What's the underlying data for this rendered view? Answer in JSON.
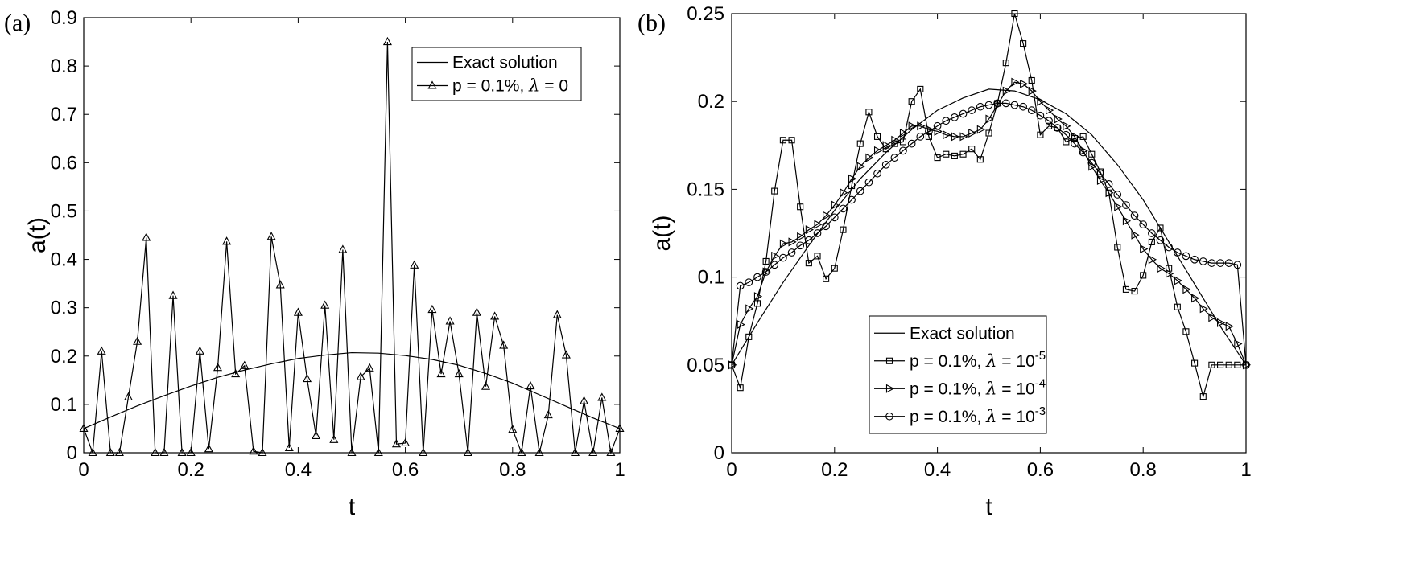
{
  "chart_data": [
    {
      "type": "line",
      "panel_label": "(a)",
      "xlabel": "t",
      "ylabel": "a(t)",
      "xlim": [
        0,
        1
      ],
      "ylim": [
        0,
        0.9
      ],
      "xticks": [
        0,
        0.2,
        0.4,
        0.6,
        0.8,
        1
      ],
      "xtick_labels": [
        "0",
        "0.2",
        "0.4",
        "0.6",
        "0.8",
        "1"
      ],
      "yticks": [
        0,
        0.1,
        0.2,
        0.3,
        0.4,
        0.5,
        0.6,
        0.7,
        0.8,
        0.9
      ],
      "ytick_labels": [
        "0",
        "0.1",
        "0.2",
        "0.3",
        "0.4",
        "0.5",
        "0.6",
        "0.7",
        "0.8",
        "0.9"
      ],
      "legend_position": "top-right",
      "series": [
        {
          "name": "Exact solution",
          "marker": "none",
          "x": [
            0,
            0.05,
            0.1,
            0.15,
            0.2,
            0.25,
            0.3,
            0.35,
            0.4,
            0.45,
            0.5,
            0.55,
            0.6,
            0.65,
            0.7,
            0.75,
            0.8,
            0.85,
            0.9,
            0.95,
            1
          ],
          "y": [
            0.05,
            0.074,
            0.097,
            0.118,
            0.138,
            0.156,
            0.171,
            0.184,
            0.195,
            0.202,
            0.207,
            0.206,
            0.201,
            0.193,
            0.181,
            0.164,
            0.144,
            0.12,
            0.096,
            0.072,
            0.05
          ]
        },
        {
          "name": "p = 0.1%, λ = 0",
          "label_pre": "p = 0.1%, ",
          "label_sym": "λ",
          "label_post": " = 0",
          "marker": "triangle-up",
          "x": [
            0,
            0.0167,
            0.0333,
            0.05,
            0.0667,
            0.0833,
            0.1,
            0.1167,
            0.1333,
            0.15,
            0.1667,
            0.1833,
            0.2,
            0.2167,
            0.2333,
            0.25,
            0.2667,
            0.2833,
            0.3,
            0.3167,
            0.3333,
            0.35,
            0.3667,
            0.3833,
            0.4,
            0.4167,
            0.4333,
            0.45,
            0.4667,
            0.4833,
            0.5,
            0.5167,
            0.5333,
            0.55,
            0.5667,
            0.5833,
            0.6,
            0.6167,
            0.6333,
            0.65,
            0.6667,
            0.6833,
            0.7,
            0.7167,
            0.7333,
            0.75,
            0.7667,
            0.7833,
            0.8,
            0.8167,
            0.8333,
            0.85,
            0.8667,
            0.8833,
            0.9,
            0.9167,
            0.9333,
            0.95,
            0.9667,
            0.9833,
            1
          ],
          "y": [
            0.05,
            0,
            0.21,
            0,
            0,
            0.115,
            0.23,
            0.445,
            0,
            0,
            0.325,
            0,
            0,
            0.21,
            0.008,
            0.176,
            0.437,
            0.163,
            0.18,
            0.003,
            0,
            0.447,
            0.347,
            0.01,
            0.29,
            0.153,
            0.035,
            0.305,
            0.027,
            0.42,
            0,
            0.157,
            0.175,
            0,
            0.85,
            0.018,
            0.02,
            0.388,
            0,
            0.296,
            0.163,
            0.272,
            0.163,
            0,
            0.29,
            0.137,
            0.282,
            0.222,
            0.048,
            0,
            0.138,
            0,
            0.078,
            0.285,
            0.202,
            0,
            0.107,
            0,
            0.114,
            0,
            0.05
          ]
        }
      ]
    },
    {
      "type": "line",
      "panel_label": "(b)",
      "xlabel": "t",
      "ylabel": "a(t)",
      "xlim": [
        0,
        1
      ],
      "ylim": [
        0,
        0.25
      ],
      "xticks": [
        0,
        0.2,
        0.4,
        0.6,
        0.8,
        1
      ],
      "xtick_labels": [
        "0",
        "0.2",
        "0.4",
        "0.6",
        "0.8",
        "1"
      ],
      "yticks": [
        0,
        0.05,
        0.1,
        0.15,
        0.2,
        0.25
      ],
      "ytick_labels": [
        "0",
        "0.05",
        "0.1",
        "0.15",
        "0.2",
        "0.25"
      ],
      "legend_position": "bottom-center",
      "series": [
        {
          "name": "Exact solution",
          "marker": "none",
          "x": [
            0,
            0.05,
            0.1,
            0.15,
            0.2,
            0.25,
            0.3,
            0.35,
            0.4,
            0.45,
            0.5,
            0.55,
            0.6,
            0.65,
            0.7,
            0.75,
            0.8,
            0.85,
            0.9,
            0.95,
            1
          ],
          "y": [
            0.05,
            0.074,
            0.097,
            0.118,
            0.138,
            0.156,
            0.171,
            0.184,
            0.195,
            0.202,
            0.207,
            0.206,
            0.201,
            0.193,
            0.181,
            0.164,
            0.144,
            0.12,
            0.096,
            0.072,
            0.05
          ]
        },
        {
          "name": "p = 0.1%, λ = 10^-5",
          "label_pre": "p = 0.1%, ",
          "label_sym": "λ",
          "label_post": " = 10",
          "label_sup": "-5",
          "marker": "square",
          "x": [
            0,
            0.0167,
            0.0333,
            0.05,
            0.0667,
            0.0833,
            0.1,
            0.1167,
            0.1333,
            0.15,
            0.1667,
            0.1833,
            0.2,
            0.2167,
            0.2333,
            0.25,
            0.2667,
            0.2833,
            0.3,
            0.3167,
            0.3333,
            0.35,
            0.3667,
            0.3833,
            0.4,
            0.4167,
            0.4333,
            0.45,
            0.4667,
            0.4833,
            0.5,
            0.5167,
            0.5333,
            0.55,
            0.5667,
            0.5833,
            0.6,
            0.6167,
            0.6333,
            0.65,
            0.6667,
            0.6833,
            0.7,
            0.7167,
            0.7333,
            0.75,
            0.7667,
            0.7833,
            0.8,
            0.8167,
            0.8333,
            0.85,
            0.8667,
            0.8833,
            0.9,
            0.9167,
            0.9333,
            0.95,
            0.9667,
            0.9833,
            1
          ],
          "y": [
            0.05,
            0.037,
            0.066,
            0.085,
            0.109,
            0.149,
            0.178,
            0.178,
            0.14,
            0.108,
            0.112,
            0.099,
            0.105,
            0.127,
            0.152,
            0.176,
            0.194,
            0.18,
            0.173,
            0.176,
            0.177,
            0.2,
            0.207,
            0.18,
            0.168,
            0.17,
            0.169,
            0.17,
            0.173,
            0.167,
            0.182,
            0.199,
            0.222,
            0.25,
            0.233,
            0.212,
            0.181,
            0.186,
            0.185,
            0.177,
            0.179,
            0.18,
            0.17,
            0.16,
            0.148,
            0.117,
            0.093,
            0.092,
            0.101,
            0.12,
            0.128,
            0.105,
            0.083,
            0.069,
            0.051,
            0.032,
            0.05,
            0.05,
            0.05,
            0.05,
            0.05
          ]
        },
        {
          "name": "p = 0.1%, λ = 10^-4",
          "label_pre": "p = 0.1%, ",
          "label_sym": "λ",
          "label_post": " = 10",
          "label_sup": "-4",
          "marker": "triangle-right",
          "x": [
            0,
            0.0167,
            0.0333,
            0.05,
            0.0667,
            0.0833,
            0.1,
            0.1167,
            0.1333,
            0.15,
            0.1667,
            0.1833,
            0.2,
            0.2167,
            0.2333,
            0.25,
            0.2667,
            0.2833,
            0.3,
            0.3167,
            0.3333,
            0.35,
            0.3667,
            0.3833,
            0.4,
            0.4167,
            0.4333,
            0.45,
            0.4667,
            0.4833,
            0.5,
            0.5167,
            0.5333,
            0.55,
            0.5667,
            0.5833,
            0.6,
            0.6167,
            0.6333,
            0.65,
            0.6667,
            0.6833,
            0.7,
            0.7167,
            0.7333,
            0.75,
            0.7667,
            0.7833,
            0.8,
            0.8167,
            0.8333,
            0.85,
            0.8667,
            0.8833,
            0.9,
            0.9167,
            0.9333,
            0.95,
            0.9667,
            0.9833,
            1
          ],
          "y": [
            0.05,
            0.073,
            0.082,
            0.089,
            0.103,
            0.112,
            0.119,
            0.12,
            0.123,
            0.127,
            0.13,
            0.135,
            0.141,
            0.148,
            0.156,
            0.163,
            0.168,
            0.172,
            0.175,
            0.178,
            0.182,
            0.186,
            0.186,
            0.184,
            0.183,
            0.181,
            0.18,
            0.18,
            0.182,
            0.184,
            0.19,
            0.198,
            0.206,
            0.211,
            0.21,
            0.206,
            0.2,
            0.195,
            0.19,
            0.186,
            0.18,
            0.172,
            0.163,
            0.155,
            0.148,
            0.14,
            0.132,
            0.124,
            0.116,
            0.11,
            0.105,
            0.102,
            0.098,
            0.093,
            0.088,
            0.082,
            0.077,
            0.074,
            0.072,
            0.062,
            0.05
          ]
        },
        {
          "name": "p = 0.1%, λ = 10^-3",
          "label_pre": "p = 0.1%, ",
          "label_sym": "λ",
          "label_post": " = 10",
          "label_sup": "-3",
          "marker": "circle",
          "x": [
            0,
            0.0167,
            0.0333,
            0.05,
            0.0667,
            0.0833,
            0.1,
            0.1167,
            0.1333,
            0.15,
            0.1667,
            0.1833,
            0.2,
            0.2167,
            0.2333,
            0.25,
            0.2667,
            0.2833,
            0.3,
            0.3167,
            0.3333,
            0.35,
            0.3667,
            0.3833,
            0.4,
            0.4167,
            0.4333,
            0.45,
            0.4667,
            0.4833,
            0.5,
            0.5167,
            0.5333,
            0.55,
            0.5667,
            0.5833,
            0.6,
            0.6167,
            0.6333,
            0.65,
            0.6667,
            0.6833,
            0.7,
            0.7167,
            0.7333,
            0.75,
            0.7667,
            0.7833,
            0.8,
            0.8167,
            0.8333,
            0.85,
            0.8667,
            0.8833,
            0.9,
            0.9167,
            0.9333,
            0.95,
            0.9667,
            0.9833,
            1
          ],
          "y": [
            0.05,
            0.095,
            0.097,
            0.1,
            0.103,
            0.107,
            0.111,
            0.114,
            0.118,
            0.121,
            0.125,
            0.129,
            0.134,
            0.139,
            0.144,
            0.149,
            0.154,
            0.159,
            0.164,
            0.168,
            0.172,
            0.176,
            0.18,
            0.183,
            0.186,
            0.189,
            0.191,
            0.193,
            0.195,
            0.197,
            0.198,
            0.199,
            0.199,
            0.198,
            0.197,
            0.195,
            0.192,
            0.189,
            0.185,
            0.181,
            0.176,
            0.171,
            0.165,
            0.159,
            0.153,
            0.147,
            0.141,
            0.135,
            0.13,
            0.125,
            0.121,
            0.117,
            0.114,
            0.112,
            0.11,
            0.109,
            0.108,
            0.108,
            0.108,
            0.107,
            0.05
          ]
        }
      ]
    }
  ]
}
